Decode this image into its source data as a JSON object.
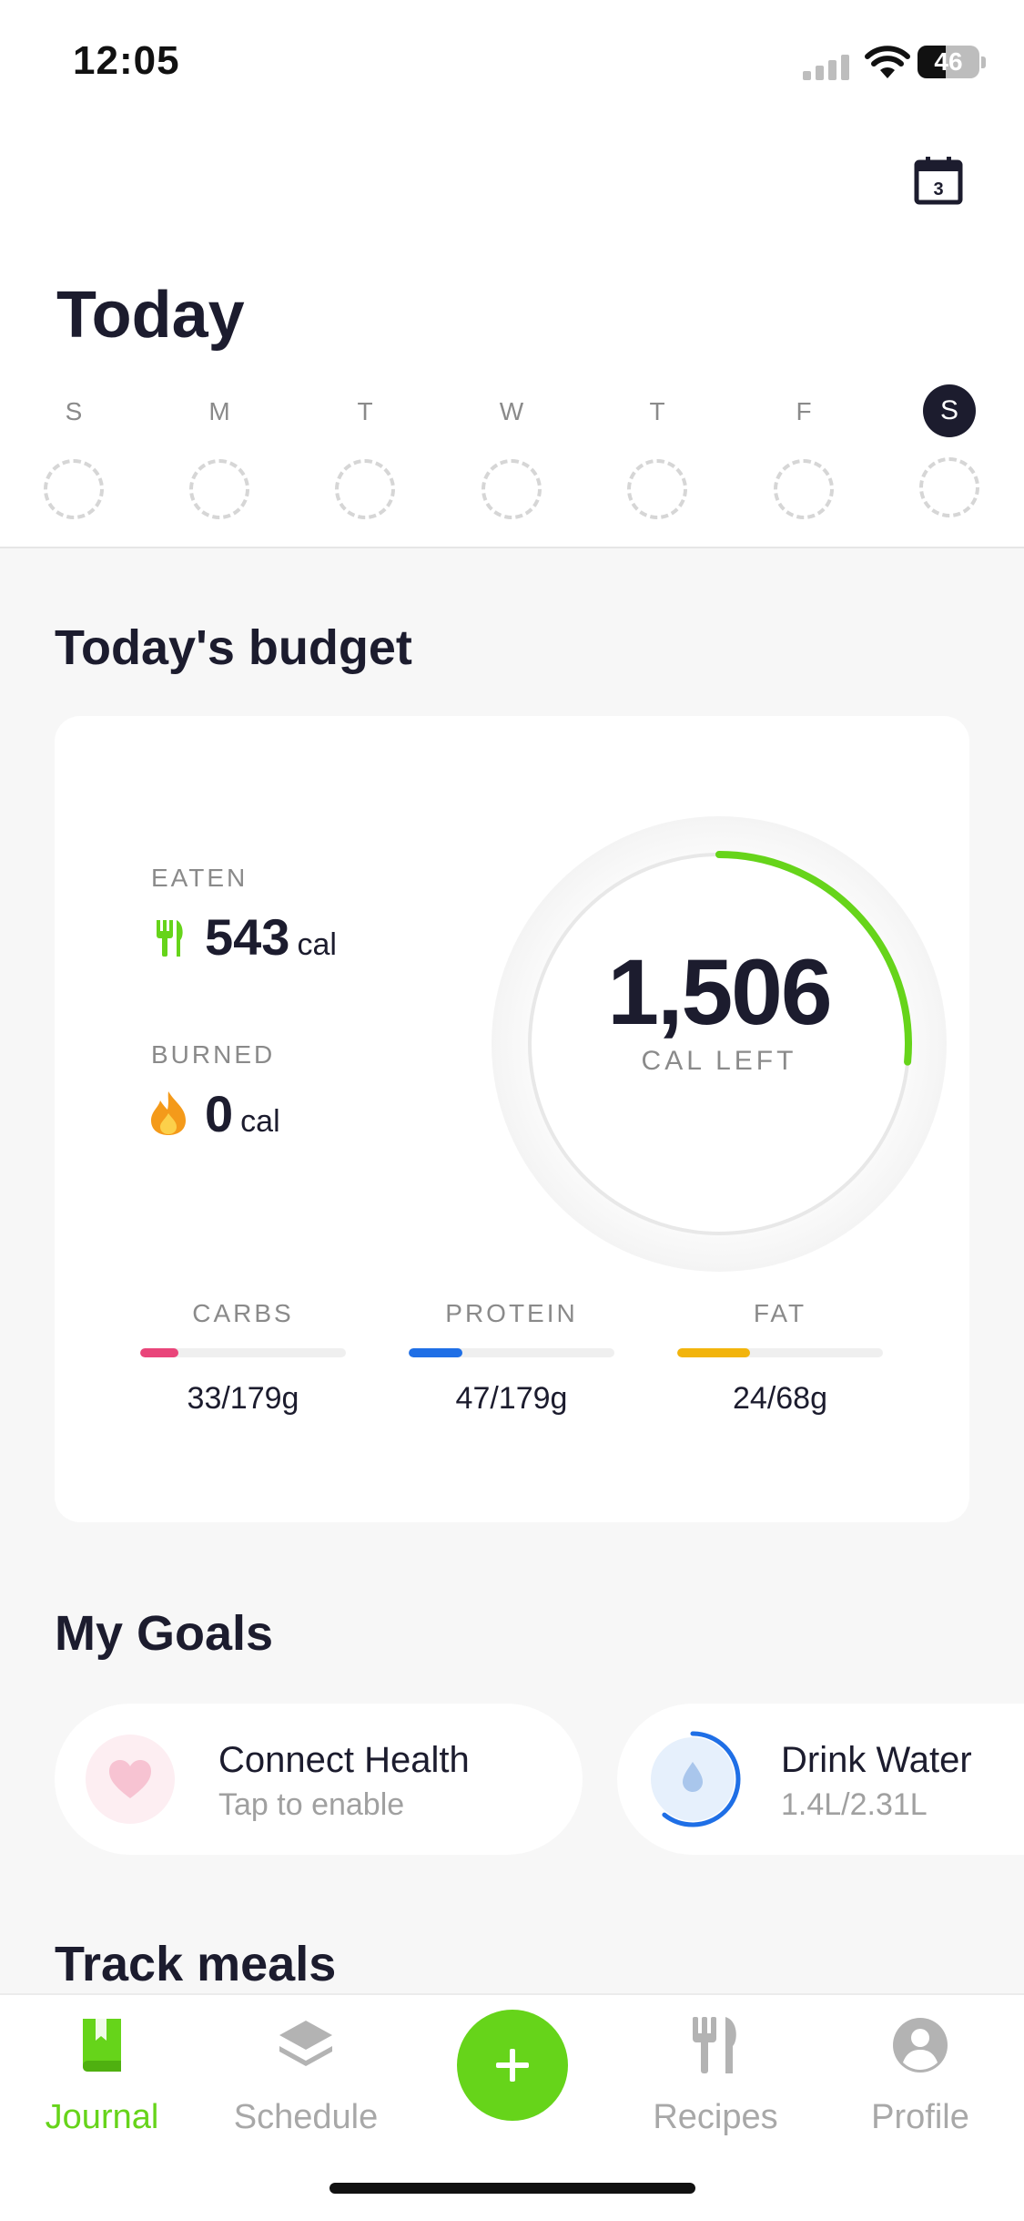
{
  "status_bar": {
    "time": "12:05",
    "battery": "46",
    "battery_level": 0.46
  },
  "header": {
    "title": "Today",
    "days": [
      {
        "label": "S",
        "selected": false
      },
      {
        "label": "M",
        "selected": false
      },
      {
        "label": "T",
        "selected": false
      },
      {
        "label": "W",
        "selected": false
      },
      {
        "label": "T",
        "selected": false
      },
      {
        "label": "F",
        "selected": false
      },
      {
        "label": "S",
        "selected": true
      }
    ],
    "calendar_day": "3"
  },
  "budget": {
    "title": "Today's budget",
    "eaten_label": "EATEN",
    "eaten_value": "543",
    "eaten_unit": "cal",
    "burned_label": "BURNED",
    "burned_value": "0",
    "burned_unit": "cal",
    "cal_left": "1,506",
    "cal_left_label": "CAL LEFT",
    "progress": 0.265,
    "macros": [
      {
        "name": "CARBS",
        "value": "33/179g",
        "fraction": 0.184,
        "color": "#e9457a"
      },
      {
        "name": "PROTEIN",
        "value": "47/179g",
        "fraction": 0.263,
        "color": "#1f6fe6"
      },
      {
        "name": "FAT",
        "value": "24/68g",
        "fraction": 0.353,
        "color": "#f2b40c"
      }
    ],
    "accent_color": "#66d41a"
  },
  "goals": {
    "title": "My Goals",
    "items": [
      {
        "title": "Connect Health",
        "subtitle": "Tap to enable"
      },
      {
        "title": "Drink Water",
        "subtitle": "1.4L/2.31L",
        "fraction": 0.606
      }
    ]
  },
  "track": {
    "title": "Track meals"
  },
  "tabs": [
    {
      "label": "Journal",
      "active": true
    },
    {
      "label": "Schedule",
      "active": false
    },
    {
      "label": "Recipes",
      "active": false
    },
    {
      "label": "Profile",
      "active": false
    }
  ]
}
